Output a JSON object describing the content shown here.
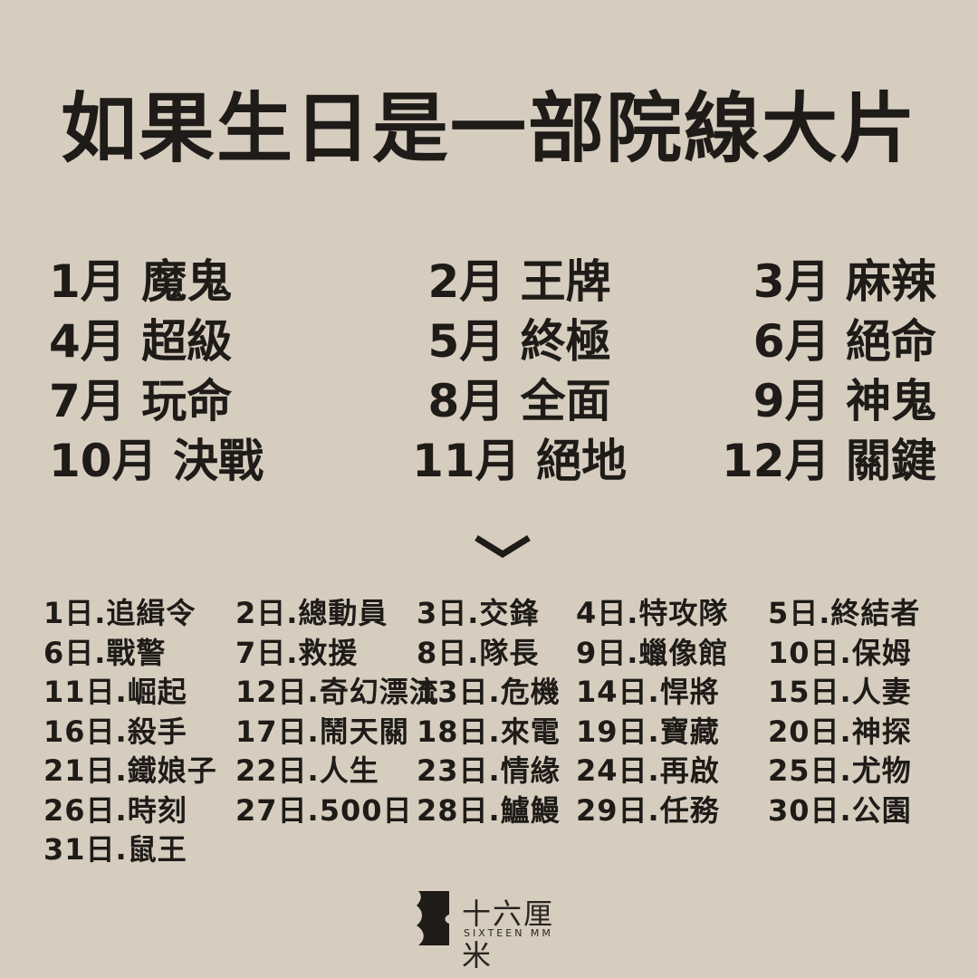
{
  "title": "如果生日是一部院線大片",
  "months": [
    [
      "1月 魔鬼",
      "2月 王牌",
      "3月 麻辣"
    ],
    [
      "4月 超級",
      "5月 終極",
      "6月 絕命"
    ],
    [
      "7月 玩命",
      "8月 全面",
      "9月 神鬼"
    ],
    [
      "10月 決戰",
      "11月 絕地",
      "12月 關鍵"
    ]
  ],
  "divider_icon": "chevron-down-icon",
  "days": [
    [
      "1日.追緝令",
      "2日.總動員",
      "3日.交鋒",
      "4日.特攻隊",
      "5日.終結者"
    ],
    [
      "6日.戰警",
      "7日.救援",
      "8日.隊長",
      "9日.蠟像館",
      "10日.保姆"
    ],
    [
      "11日.崛起",
      "12日.奇幻漂流",
      "13日.危機",
      "14日.悍將",
      "15日.人妻"
    ],
    [
      "16日.殺手",
      "17日.鬧天關",
      "18日.來電",
      "19日.寶藏",
      "20日.神探"
    ],
    [
      "21日.鐵娘子",
      "22日.人生",
      "23日.情緣",
      "24日.再啟",
      "25日.尤物"
    ],
    [
      "26日.時刻",
      "27日.500日",
      "28日.鱸鰻",
      "29日.任務",
      "30日.公園"
    ],
    [
      "31日.鼠王",
      "",
      "",
      "",
      ""
    ]
  ],
  "logo": {
    "name_cn": "十六厘米",
    "name_en": "SIXTEEN MM"
  }
}
